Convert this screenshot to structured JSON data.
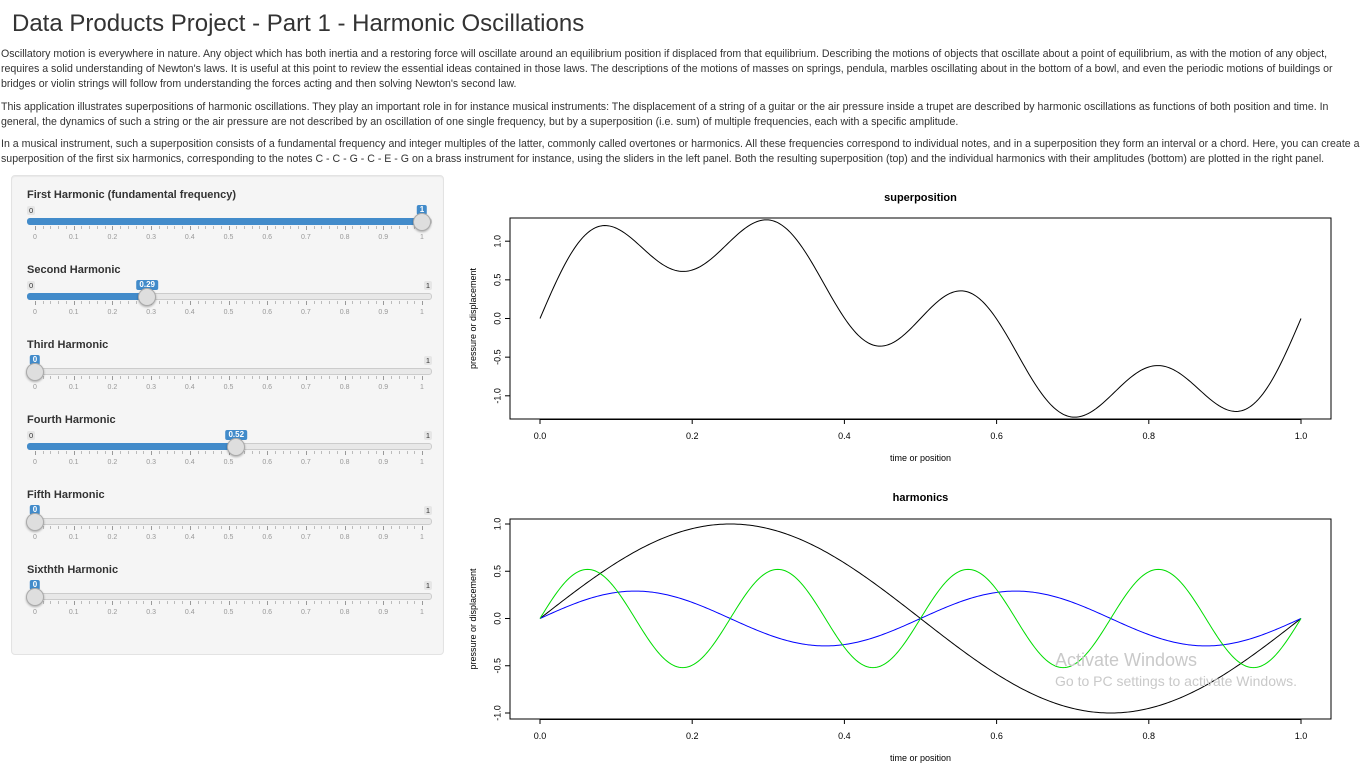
{
  "page": {
    "title": "Data Products Project - Part 1 - Harmonic Oscillations",
    "paragraphs": [
      "Oscillatory motion is everywhere in nature. Any object which has both inertia and a restoring force will oscillate around an equilibrium position if displaced from that equilibrium. Describing the motions of objects that oscillate about a point of equilibrium, as with the motion of any object, requires a solid understanding of Newton's laws. It is useful at this point to review the essential ideas contained in those laws. The descriptions of the motions of masses on springs, pendula, marbles oscillating about in the bottom of a bowl, and even the periodic motions of buildings or bridges or violin strings will follow from understanding the forces acting and then solving Newton's second law.",
      "This application illustrates superpositions of harmonic oscillations. They play an important role in for instance musical instruments: The displacement of a string of a guitar or the air pressure inside a trupet are described by harmonic oscillations as functions of both position and time. In general, the dynamics of such a string or the air pressure are not described by an oscillation of one single frequency, but by a superposition (i.e. sum) of multiple frequencies, each with a specific amplitude.",
      "In a musical instrument, such a superposition consists of a fundamental frequency and integer multiples of the latter, commonly called overtones or harmonics. All these frequencies correspond to individual notes, and in a superposition they form an interval or a chord. Here, you can create a superposition of the first six harmonics, corresponding to the notes C - C - G - C - E - G on a brass instrument for instance, using the sliders in the left panel. Both the resulting superposition (top) and the individual harmonics with their amplitudes (bottom) are plotted in the right panel."
    ]
  },
  "sliders": [
    {
      "label": "First Harmonic (fundamental frequency)",
      "value": 1,
      "value_label": "1",
      "min_label": "0",
      "max_label": "1"
    },
    {
      "label": "Second Harmonic",
      "value": 0.29,
      "value_label": "0.29",
      "min_label": "0",
      "max_label": "1"
    },
    {
      "label": "Third Harmonic",
      "value": 0,
      "value_label": "0",
      "min_label": "0",
      "max_label": "1"
    },
    {
      "label": "Fourth Harmonic",
      "value": 0.52,
      "value_label": "0.52",
      "min_label": "0",
      "max_label": "1"
    },
    {
      "label": "Fifth Harmonic",
      "value": 0,
      "value_label": "0",
      "min_label": "0",
      "max_label": "1"
    },
    {
      "label": "Sixthth Harmonic",
      "value": 0,
      "value_label": "0",
      "min_label": "0",
      "max_label": "1"
    }
  ],
  "slider_ticks": [
    "0",
    "0.1",
    "0.2",
    "0.3",
    "0.4",
    "0.5",
    "0.6",
    "0.7",
    "0.8",
    "0.9",
    "1"
  ],
  "chart_data": [
    {
      "type": "line",
      "title": "superposition",
      "xlabel": "time or position",
      "ylabel": "pressure or displacement",
      "xlim": [
        0,
        1
      ],
      "ylim": [
        -1.3,
        1.3
      ],
      "x_ticks": [
        "0.0",
        "0.2",
        "0.4",
        "0.6",
        "0.8",
        "1.0"
      ],
      "y_ticks": [
        "-1.0",
        "-0.5",
        "0.0",
        "0.5",
        "1.0"
      ],
      "grid": false,
      "series": [
        {
          "function": "sum_k a_k*sin(2*pi*k*x)",
          "amplitudes": [
            1,
            0.29,
            0,
            0.52,
            0,
            0
          ],
          "color": "#000000"
        }
      ]
    },
    {
      "type": "line",
      "title": "harmonics",
      "xlabel": "time or position",
      "ylabel": "pressure or displacement",
      "xlim": [
        0,
        1
      ],
      "ylim": [
        -1.0,
        1.0
      ],
      "x_ticks": [
        "0.0",
        "0.2",
        "0.4",
        "0.6",
        "0.8",
        "1.0"
      ],
      "y_ticks": [
        "-1.0",
        "-0.5",
        "0.0",
        "0.5",
        "1.0"
      ],
      "grid": false,
      "series": [
        {
          "harmonic": 1,
          "amplitude": 1,
          "color": "#000000"
        },
        {
          "harmonic": 2,
          "amplitude": 0.29,
          "color": "#0000ff"
        },
        {
          "harmonic": 4,
          "amplitude": 0.52,
          "color": "#00dd00"
        }
      ]
    }
  ],
  "watermark": {
    "line1": "Activate Windows",
    "line2": "Go to PC settings to activate Windows."
  }
}
